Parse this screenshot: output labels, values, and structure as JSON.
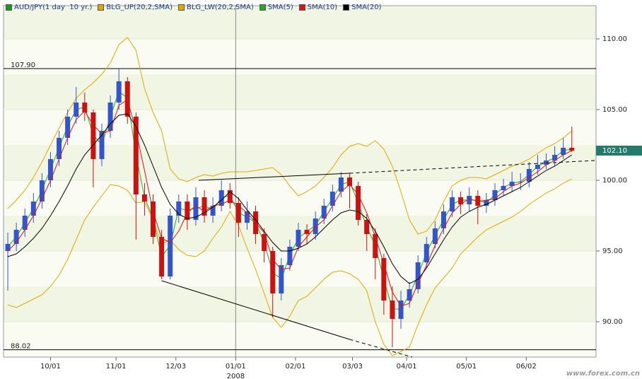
{
  "chart_data": {
    "type": "candlestick",
    "name": "AUD/JPY(1 day  10 yr.)",
    "legend_color": "#1a9a1a",
    "up_color": "#3355cc",
    "down_color": "#cc1111",
    "x": [
      0,
      3,
      6,
      9,
      12,
      15,
      18,
      21,
      24,
      27,
      30,
      33,
      36,
      39,
      42,
      45,
      48,
      51,
      54,
      57,
      60,
      63,
      66,
      69,
      72,
      75,
      78,
      81,
      84,
      87,
      90,
      93,
      96,
      99,
      102,
      105,
      108,
      111,
      114,
      117,
      120,
      123,
      126,
      129,
      132,
      135,
      138,
      141,
      144,
      147,
      150,
      153,
      156,
      159,
      162,
      165,
      168,
      171,
      174,
      177,
      180,
      183,
      186,
      189,
      192,
      195,
      198
    ],
    "open": [
      95.0,
      95.5,
      96.5,
      97.5,
      98.5,
      100.0,
      101.5,
      103.0,
      104.5,
      105.5,
      104.8,
      101.5,
      103.5,
      105.5,
      107.0,
      104.5,
      99.0,
      98.5,
      96.0,
      93.2,
      97.5,
      98.5,
      97.2,
      98.8,
      97.5,
      98.2,
      99.3,
      98.4,
      97.0,
      97.8,
      96.2,
      95.0,
      92.0,
      94.0,
      95.3,
      96.5,
      96.2,
      97.3,
      98.2,
      99.2,
      100.2,
      99.6,
      97.2,
      96.2,
      94.5,
      91.5,
      90.2,
      91.5,
      92.3,
      94.2,
      95.5,
      96.6,
      97.8,
      98.8,
      98.3,
      98.9,
      98.2,
      98.6,
      99.3,
      99.6,
      99.9,
      99.9,
      100.8,
      101.1,
      101.4,
      101.8,
      102.3
    ],
    "high": [
      96.3,
      97.0,
      98.0,
      99.1,
      100.5,
      102.0,
      103.5,
      105.0,
      106.6,
      106.2,
      105.0,
      104.0,
      106.0,
      107.9,
      107.3,
      104.8,
      99.8,
      99.0,
      96.5,
      98.0,
      99.0,
      99.0,
      99.5,
      99.3,
      98.8,
      100.0,
      99.8,
      98.8,
      98.5,
      98.2,
      96.6,
      95.3,
      94.5,
      95.8,
      97.0,
      96.9,
      97.8,
      98.7,
      99.7,
      100.6,
      100.5,
      99.9,
      97.6,
      96.6,
      94.8,
      92.5,
      92.2,
      92.8,
      94.7,
      96.0,
      97.1,
      98.3,
      99.3,
      99.2,
      99.5,
      99.3,
      99.1,
      99.8,
      100.1,
      100.6,
      100.5,
      101.3,
      101.8,
      101.9,
      102.4,
      103.0,
      103.8
    ],
    "low": [
      92.2,
      95.0,
      96.0,
      97.0,
      98.0,
      99.5,
      101.0,
      102.5,
      104.0,
      104.2,
      99.5,
      101.0,
      103.0,
      105.0,
      104.0,
      95.8,
      97.5,
      95.5,
      93.0,
      93.0,
      97.0,
      96.5,
      96.8,
      97.0,
      97.0,
      97.8,
      98.0,
      96.0,
      96.5,
      95.5,
      94.2,
      90.3,
      91.5,
      93.6,
      95.0,
      95.5,
      95.8,
      96.9,
      97.8,
      98.8,
      98.0,
      96.8,
      95.0,
      93.0,
      90.5,
      88.2,
      89.5,
      91.0,
      92.0,
      93.8,
      95.2,
      96.2,
      97.4,
      97.6,
      97.8,
      96.9,
      97.7,
      98.2,
      98.9,
      99.2,
      99.3,
      99.5,
      100.4,
      100.8,
      101.0,
      101.5,
      102.0
    ],
    "close": [
      95.5,
      96.5,
      97.5,
      98.5,
      100.0,
      101.5,
      103.0,
      104.5,
      105.5,
      104.8,
      101.5,
      103.5,
      105.5,
      107.0,
      104.5,
      99.0,
      98.5,
      96.0,
      93.2,
      97.5,
      98.5,
      97.2,
      98.8,
      97.5,
      98.2,
      99.3,
      98.4,
      97.0,
      97.8,
      96.2,
      95.0,
      92.0,
      94.0,
      95.3,
      96.5,
      96.2,
      97.3,
      98.2,
      99.2,
      100.2,
      99.6,
      97.2,
      96.2,
      94.5,
      91.5,
      90.2,
      91.5,
      92.3,
      94.2,
      95.5,
      96.6,
      97.8,
      98.8,
      98.3,
      98.9,
      98.2,
      98.6,
      99.3,
      99.6,
      99.9,
      99.9,
      100.8,
      101.1,
      101.4,
      101.8,
      102.3,
      102.1
    ],
    "series": [
      {
        "name": "BLG_UP(20,2,SMA)",
        "color": "#e0a800",
        "values": [
          98.0,
          98.6,
          99.3,
          100.2,
          101.3,
          102.5,
          103.7,
          104.8,
          105.8,
          106.4,
          106.9,
          107.5,
          108.3,
          109.6,
          110.1,
          109.2,
          106.5,
          104.8,
          103.5,
          100.8,
          100.1,
          99.9,
          100.2,
          100.4,
          100.3,
          100.5,
          100.6,
          100.6,
          100.6,
          100.7,
          100.8,
          100.9,
          100.4,
          99.6,
          98.9,
          99.2,
          99.6,
          100.2,
          100.9,
          101.8,
          102.4,
          102.6,
          102.4,
          102.8,
          102.2,
          101.0,
          99.2,
          97.2,
          96.2,
          96.4,
          97.2,
          98.5,
          99.6,
          100.0,
          100.2,
          100.2,
          100.1,
          100.4,
          100.7,
          101.0,
          101.2,
          101.5,
          101.9,
          102.3,
          102.6,
          103.0,
          103.5
        ]
      },
      {
        "name": "BLG_LW(20,2,SMA)",
        "color": "#e0a800",
        "values": [
          91.2,
          91.0,
          91.3,
          91.6,
          91.9,
          92.5,
          93.3,
          94.4,
          95.8,
          97.2,
          98.1,
          98.9,
          99.7,
          99.6,
          99.3,
          98.4,
          98.5,
          97.2,
          95.5,
          95.8,
          95.1,
          94.7,
          94.6,
          95.0,
          95.9,
          96.7,
          97.8,
          96.8,
          95.2,
          93.7,
          92.0,
          90.3,
          89.6,
          90.4,
          91.5,
          91.8,
          92.4,
          93.0,
          93.5,
          93.6,
          93.4,
          93.0,
          92.2,
          90.0,
          88.4,
          87.6,
          87.9,
          88.2,
          89.8,
          91.2,
          92.4,
          93.1,
          93.8,
          94.8,
          95.4,
          96.0,
          96.5,
          96.8,
          97.1,
          97.4,
          97.8,
          98.3,
          98.7,
          99.1,
          99.4,
          99.8,
          100.1
        ]
      },
      {
        "name": "SMA(5)",
        "color": "#22aa22",
        "values": [
          95.3,
          96.0,
          97.0,
          98.0,
          99.3,
          100.8,
          102.3,
          103.8,
          105.0,
          105.2,
          103.2,
          102.5,
          104.5,
          106.3,
          105.8,
          101.8,
          98.8,
          97.3,
          94.6,
          95.4,
          98.0,
          97.9,
          98.0,
          98.2,
          97.9,
          98.8,
          98.9,
          97.7,
          97.4,
          97.0,
          95.6,
          93.5,
          93.0,
          94.7,
          95.9,
          96.4,
          96.8,
          97.8,
          98.7,
          99.7,
          99.9,
          98.4,
          96.7,
          95.4,
          93.0,
          90.9,
          90.9,
          91.9,
          93.3,
          94.9,
          96.1,
          97.2,
          98.3,
          98.6,
          98.6,
          98.6,
          98.4,
          99.0,
          99.5,
          99.8,
          99.9,
          100.4,
          101.0,
          101.3,
          101.6,
          102.1,
          102.2
        ]
      },
      {
        "name": "SMA(10)",
        "color": "#dd1111",
        "values": [
          95.0,
          95.6,
          96.5,
          97.5,
          98.7,
          100.0,
          101.5,
          103.0,
          104.3,
          104.9,
          103.9,
          103.3,
          103.5,
          105.3,
          105.7,
          103.5,
          100.7,
          97.8,
          95.9,
          95.6,
          96.4,
          97.7,
          98.2,
          97.8,
          98.2,
          98.3,
          98.6,
          98.2,
          97.7,
          97.0,
          96.3,
          94.4,
          93.7,
          93.8,
          95.3,
          96.0,
          96.7,
          97.2,
          98.2,
          99.2,
          99.7,
          99.0,
          97.7,
          96.0,
          94.1,
          92.1,
          91.1,
          91.3,
          92.7,
          94.0,
          95.4,
          96.6,
          97.7,
          98.3,
          98.7,
          98.5,
          98.6,
          98.7,
          99.2,
          99.6,
          99.8,
          100.2,
          100.6,
          101.1,
          101.4,
          101.8,
          102.1
        ]
      },
      {
        "name": "SMA(20)",
        "color": "#000000",
        "values": [
          94.6,
          94.8,
          95.3,
          95.9,
          96.6,
          97.5,
          98.5,
          99.6,
          100.8,
          101.8,
          102.5,
          103.2,
          104.0,
          104.6,
          104.7,
          103.8,
          102.5,
          101.0,
          99.5,
          98.3,
          97.6,
          97.3,
          97.4,
          97.7,
          98.1,
          98.6,
          99.2,
          98.7,
          97.9,
          97.2,
          96.4,
          95.6,
          95.0,
          95.0,
          95.2,
          95.5,
          96.0,
          96.6,
          97.2,
          97.7,
          97.9,
          97.8,
          97.3,
          96.4,
          95.3,
          94.1,
          93.2,
          92.7,
          93.0,
          93.8,
          94.8,
          95.8,
          96.7,
          97.4,
          97.8,
          98.1,
          98.3,
          98.6,
          98.9,
          99.2,
          99.5,
          99.9,
          100.3,
          100.7,
          101.0,
          101.4,
          101.8
        ]
      }
    ],
    "xlim": [
      -1.5,
      206.5
    ],
    "ylim": [
      87.5,
      112.35
    ],
    "xticks": [
      {
        "value": 15,
        "label": "10/01"
      },
      {
        "value": 38,
        "label": "11/01"
      },
      {
        "value": 59,
        "label": "12/03"
      },
      {
        "value": 80,
        "label": "01/01"
      },
      {
        "value": 101,
        "label": "02/01"
      },
      {
        "value": 121,
        "label": "03/03"
      },
      {
        "value": 140,
        "label": "04/01"
      },
      {
        "value": 161,
        "label": "05/01"
      },
      {
        "value": 182,
        "label": "06/02"
      }
    ],
    "x_year_label": "2008",
    "yticks": [
      {
        "value": 90,
        "label": "90.00"
      },
      {
        "value": 95,
        "label": "95.00"
      },
      {
        "value": 100,
        "label": "100.00"
      },
      {
        "value": 105,
        "label": "105.00"
      },
      {
        "value": 110,
        "label": "110.00"
      }
    ],
    "hlines": [
      {
        "value": 107.9,
        "label": "107.90"
      },
      {
        "value": 88.02,
        "label": "88.02"
      }
    ],
    "trendlines": [
      {
        "x": [
          67,
          120
        ],
        "y": [
          100.0,
          100.5
        ]
      },
      {
        "x": [
          120,
          206
        ],
        "y": [
          100.5,
          101.4
        ],
        "dashed": true
      },
      {
        "x": [
          54,
          120
        ],
        "y": [
          92.9,
          88.75
        ]
      },
      {
        "x": [
          120,
          142
        ],
        "y": [
          88.75,
          87.5
        ],
        "dashed": true
      }
    ],
    "last_price": {
      "value": 102.1,
      "label": "102.10"
    },
    "watermark": "www.forex.com.cn"
  }
}
